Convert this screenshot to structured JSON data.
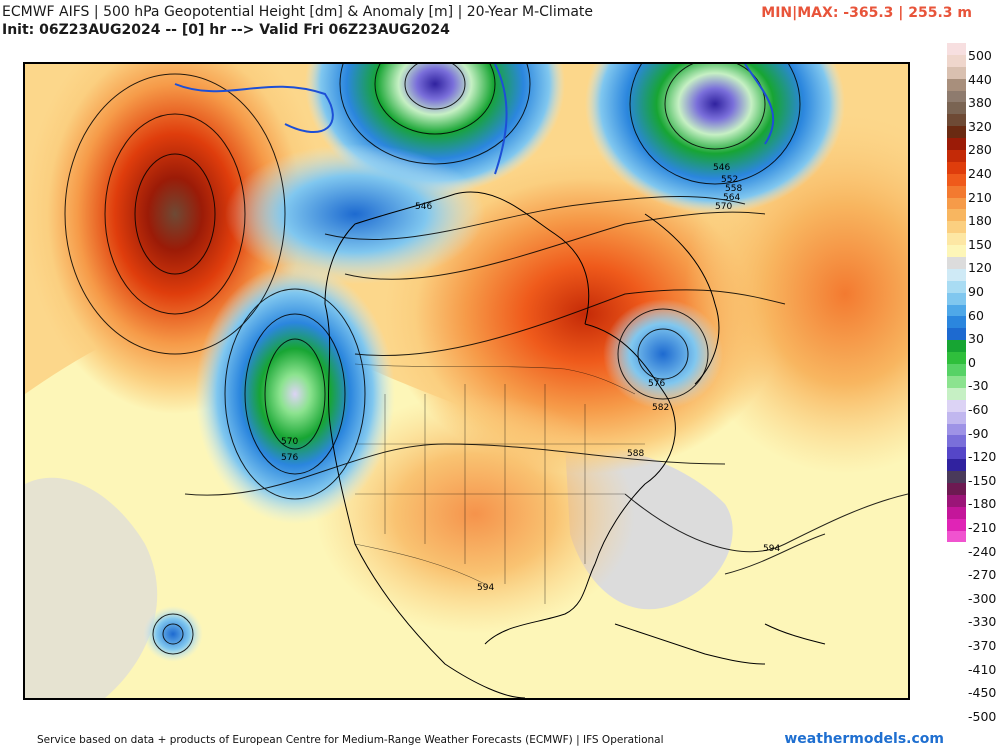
{
  "header": {
    "title_line1": "ECMWF AIFS | 500 hPa Geopotential Height [dm] & Anomaly [m] | 20-Year M-Climate",
    "title_line2": "Init: 06Z23AUG2024 -- [0] hr --> Valid Fri 06Z23AUG2024",
    "minmax": "MIN|MAX: -365.3 | 255.3 m"
  },
  "colorbar": {
    "units": "m",
    "swatches": [
      "#f7dfe0",
      "#efd6cc",
      "#d9c0b0",
      "#a88f7c",
      "#8e7b6e",
      "#7a6453",
      "#6e4a35",
      "#6a2a12",
      "#9b1b07",
      "#c42a07",
      "#df3d0c",
      "#ef5a1b",
      "#f37a30",
      "#f69b49",
      "#f8b660",
      "#fbcf80",
      "#fde7a4",
      "#fdf6b8",
      "#dcdcdc",
      "#cfeaf6",
      "#a9dcf3",
      "#80c7ef",
      "#4fa8e8",
      "#2b86de",
      "#1d6ad0",
      "#17a533",
      "#2fbf3c",
      "#57d266",
      "#8ce38f",
      "#c6f0c4",
      "#dcd3f5",
      "#c1b7ef",
      "#9e93e6",
      "#7a6fda",
      "#5546c8",
      "#30229f",
      "#4a3a5a",
      "#6d1a52",
      "#9b1578",
      "#c4169a",
      "#e024b6",
      "#f053cf"
    ],
    "ticks": [
      "500",
      "440",
      "380",
      "320",
      "280",
      "240",
      "210",
      "180",
      "150",
      "120",
      "90",
      "60",
      "30",
      "0",
      "-30",
      "-60",
      "-90",
      "-120",
      "-150",
      "-180",
      "-210",
      "-240",
      "-270",
      "-300",
      "-330",
      "-370",
      "-410",
      "-450",
      "-500"
    ]
  },
  "map": {
    "contour_labels": [
      "546",
      "552",
      "558",
      "564",
      "570",
      "546",
      "570",
      "576",
      "588",
      "594",
      "594",
      "576",
      "582"
    ],
    "region": "North America"
  },
  "footer": {
    "credit": "Service based on data + products of European Centre for Medium-Range Weather Forecasts (ECMWF) | IFS Operational",
    "brand": "weathermodels.com"
  }
}
